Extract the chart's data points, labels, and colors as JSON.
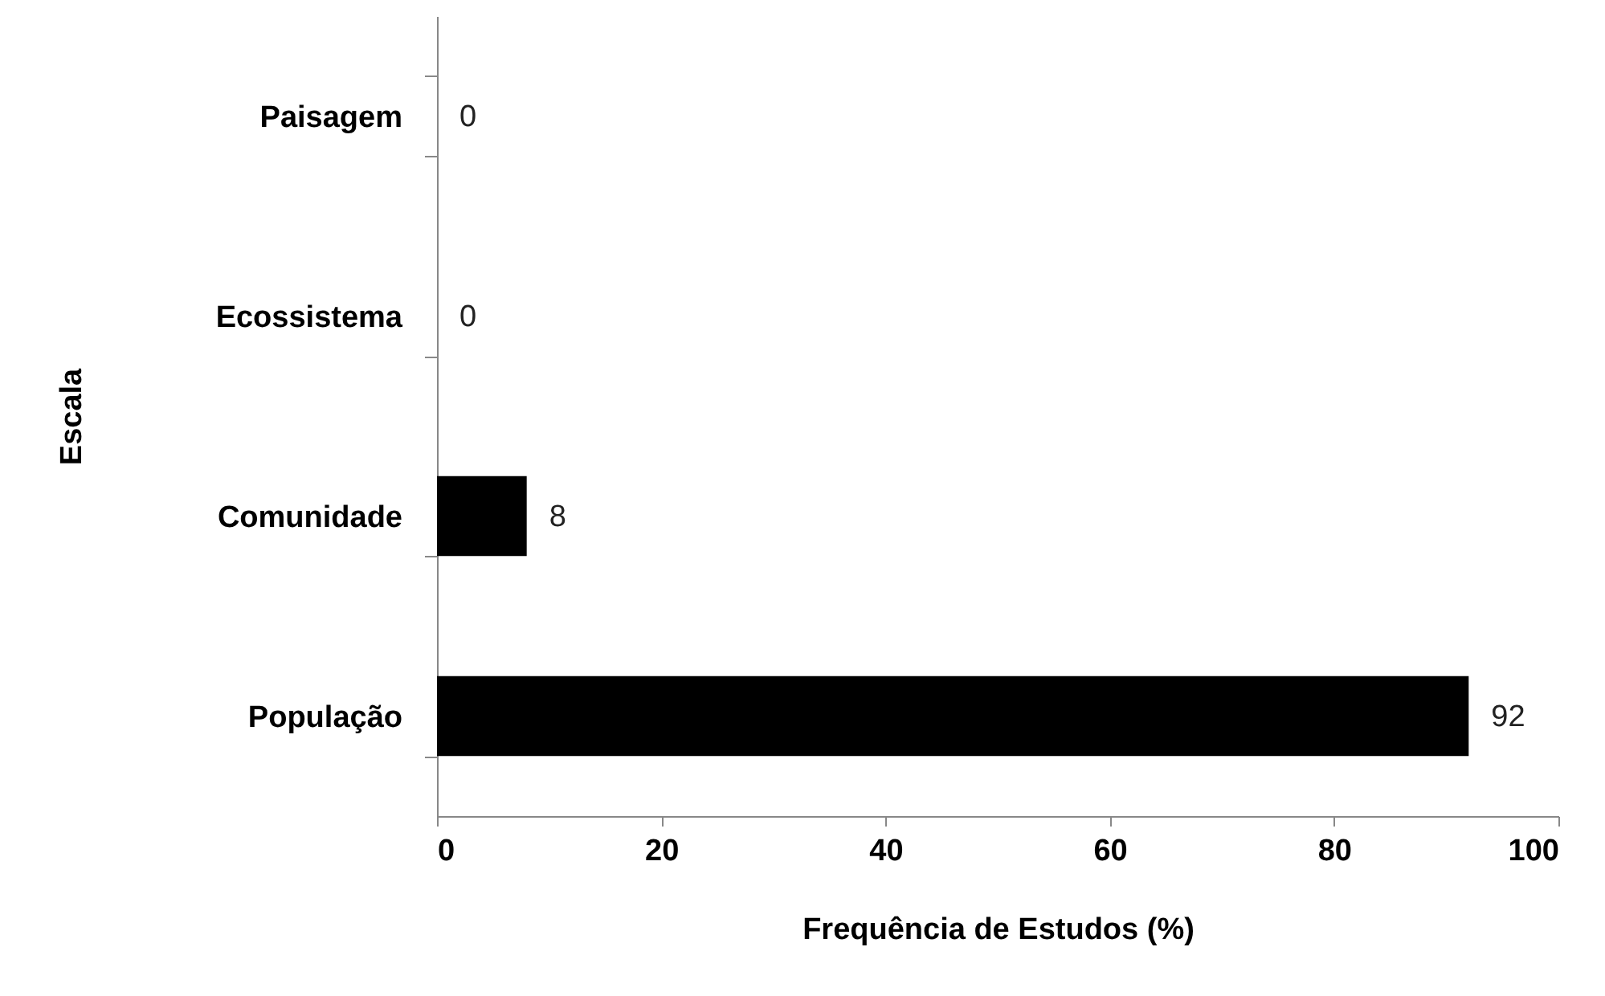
{
  "chart_data": {
    "type": "bar",
    "orientation": "horizontal",
    "xlabel": "Frequência de Estudos (%)",
    "ylabel": "Escala",
    "categories": [
      "Paisagem",
      "Ecossistema",
      "Comunidade",
      "População"
    ],
    "values": [
      0,
      0,
      8,
      92
    ],
    "color": "#000000",
    "xlim": [
      0,
      100
    ],
    "xticks": [
      0,
      20,
      40,
      60,
      80,
      100
    ],
    "data_labels": true
  }
}
